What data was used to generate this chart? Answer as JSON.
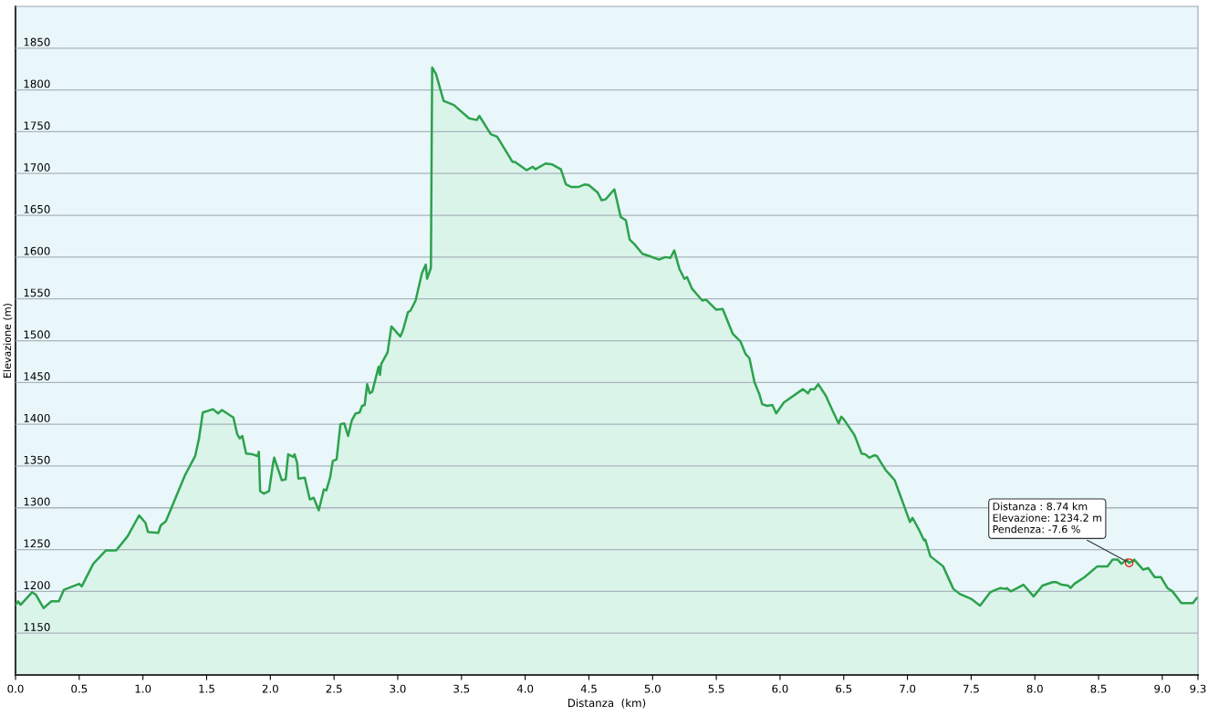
{
  "chart_data": {
    "type": "area",
    "xlabel": "Distanza  (km)",
    "ylabel": "Elevazione (m)",
    "xlim": [
      0,
      9.28
    ],
    "ylim": [
      1100,
      1900
    ],
    "xticks": [
      {
        "value": 0,
        "label": "0.0"
      },
      0.5,
      {
        "value": 1,
        "label": "1.0"
      },
      1.5,
      {
        "value": 2,
        "label": "2.0"
      },
      2.5,
      {
        "value": 3,
        "label": "3.0"
      },
      3.5,
      {
        "value": 4,
        "label": "4.0"
      },
      4.5,
      {
        "value": 5,
        "label": "5.0"
      },
      5.5,
      {
        "value": 6,
        "label": "6.0"
      },
      6.5,
      {
        "value": 7,
        "label": "7.0"
      },
      7.5,
      {
        "value": 8,
        "label": "8.0"
      },
      8.5,
      {
        "value": 9,
        "label": "9.0"
      },
      {
        "value": 9.28,
        "label": "9.3"
      }
    ],
    "yticks": [
      1150,
      1200,
      1250,
      1300,
      1350,
      1400,
      1450,
      1500,
      1550,
      1600,
      1650,
      1700,
      1750,
      1800,
      1850
    ],
    "grid": "y",
    "series": [
      {
        "color": "#2ca24c",
        "x": [
          0.0,
          0.02,
          0.04,
          0.13,
          0.16,
          0.22,
          0.28,
          0.34,
          0.38,
          0.5,
          0.52,
          0.61,
          0.71,
          0.79,
          0.88,
          0.97,
          1.02,
          1.04,
          1.12,
          1.14,
          1.18,
          1.33,
          1.41,
          1.44,
          1.47,
          1.55,
          1.59,
          1.62,
          1.71,
          1.74,
          1.76,
          1.78,
          1.81,
          1.86,
          1.9,
          1.91,
          1.92,
          1.95,
          1.99,
          2.02,
          2.03,
          2.09,
          2.12,
          2.14,
          2.18,
          2.19,
          2.21,
          2.22,
          2.27,
          2.31,
          2.34,
          2.38,
          2.42,
          2.44,
          2.47,
          2.49,
          2.52,
          2.55,
          2.58,
          2.61,
          2.64,
          2.67,
          2.7,
          2.72,
          2.74,
          2.76,
          2.78,
          2.8,
          2.85,
          2.86,
          2.87,
          2.92,
          2.95,
          3.02,
          3.04,
          3.08,
          3.1,
          3.14,
          3.19,
          3.22,
          3.23,
          3.26,
          3.27,
          3.3,
          3.36,
          3.44,
          3.56,
          3.62,
          3.64,
          3.73,
          3.78,
          3.9,
          3.92,
          4.01,
          4.06,
          4.08,
          4.16,
          4.21,
          4.28,
          4.32,
          4.36,
          4.42,
          4.47,
          4.5,
          4.57,
          4.6,
          4.63,
          4.67,
          4.7,
          4.75,
          4.79,
          4.82,
          4.86,
          4.92,
          4.98,
          5.05,
          5.1,
          5.14,
          5.17,
          5.21,
          5.25,
          5.27,
          5.31,
          5.39,
          5.42,
          5.5,
          5.55,
          5.63,
          5.69,
          5.73,
          5.76,
          5.8,
          5.84,
          5.86,
          5.9,
          5.94,
          5.97,
          6.03,
          6.18,
          6.22,
          6.24,
          6.27,
          6.3,
          6.36,
          6.41,
          6.46,
          6.48,
          6.5,
          6.58,
          6.59,
          6.64,
          6.67,
          6.7,
          6.74,
          6.76,
          6.83,
          6.86,
          6.9,
          7.02,
          7.04,
          7.09,
          7.13,
          7.14,
          7.18,
          7.28,
          7.36,
          7.41,
          7.5,
          7.57,
          7.65,
          7.68,
          7.73,
          7.77,
          7.78,
          7.81,
          7.85,
          7.91,
          7.99,
          8.06,
          8.14,
          8.17,
          8.21,
          8.26,
          8.28,
          8.31,
          8.39,
          8.49,
          8.57,
          8.61,
          8.65,
          8.68,
          8.72,
          8.74,
          8.78,
          8.85,
          8.89,
          8.94,
          8.99,
          9.04,
          9.08,
          9.15,
          9.24,
          9.27
        ],
        "values": [
          1184,
          1188,
          1184,
          1199,
          1196,
          1180,
          1188,
          1188,
          1202,
          1209,
          1206,
          1233,
          1249,
          1249,
          1266,
          1291,
          1282,
          1271,
          1270,
          1279,
          1284,
          1339,
          1362,
          1383,
          1414,
          1418,
          1413,
          1417,
          1408,
          1388,
          1383,
          1386,
          1365,
          1364,
          1362,
          1367,
          1320,
          1317,
          1320,
          1352,
          1360,
          1333,
          1334,
          1364,
          1361,
          1364,
          1354,
          1335,
          1336,
          1310,
          1312,
          1297,
          1322,
          1321,
          1337,
          1356,
          1358,
          1400,
          1401,
          1386,
          1405,
          1413,
          1414,
          1422,
          1423,
          1448,
          1437,
          1439,
          1469,
          1459,
          1472,
          1486,
          1517,
          1505,
          1512,
          1534,
          1536,
          1548,
          1581,
          1591,
          1574,
          1587,
          1827,
          1819,
          1787,
          1782,
          1766,
          1764,
          1769,
          1747,
          1744,
          1714,
          1714,
          1704,
          1708,
          1705,
          1712,
          1711,
          1705,
          1687,
          1684,
          1684,
          1687,
          1686,
          1677,
          1668,
          1669,
          1676,
          1681,
          1648,
          1644,
          1621,
          1615,
          1604,
          1601,
          1597,
          1600,
          1599,
          1608,
          1586,
          1574,
          1576,
          1562,
          1548,
          1549,
          1537,
          1538,
          1508,
          1499,
          1484,
          1479,
          1450,
          1435,
          1424,
          1422,
          1423,
          1413,
          1426,
          1442,
          1437,
          1442,
          1442,
          1448,
          1434,
          1417,
          1401,
          1409,
          1406,
          1388,
          1385,
          1365,
          1364,
          1360,
          1363,
          1362,
          1345,
          1340,
          1333,
          1283,
          1288,
          1274,
          1261,
          1262,
          1242,
          1230,
          1203,
          1197,
          1191,
          1183,
          1199,
          1201,
          1204,
          1203,
          1204,
          1200,
          1203,
          1208,
          1194,
          1207,
          1211,
          1211,
          1208,
          1207,
          1204,
          1209,
          1217,
          1230,
          1230,
          1238,
          1238,
          1233,
          1238,
          1234,
          1238,
          1226,
          1228,
          1217,
          1217,
          1204,
          1200,
          1186,
          1186,
          1192
        ]
      }
    ],
    "annotations": [
      {
        "text": "Distanza : 8.74 km\nElevazione: 1234.2 m\nPendenza: -7.6 %",
        "x": 8.74,
        "y": 1234.2
      }
    ]
  }
}
